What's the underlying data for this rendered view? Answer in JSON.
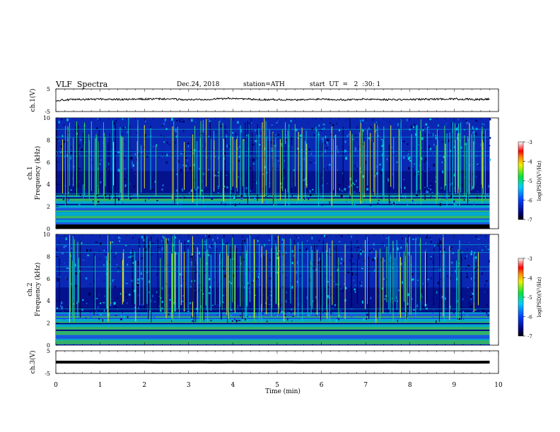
{
  "header": {
    "title": "VLF  Spectra",
    "date": "Dec.24, 2018",
    "station": "station=ATH",
    "start": "start  UT  =   2  :30: 1"
  },
  "chart_data": [
    {
      "id": "ch1-waveform",
      "type": "line",
      "ylabel": "ch.1(V)",
      "ylim": [
        -5,
        5
      ],
      "yticks": [
        "5",
        "-5"
      ],
      "xlim": [
        0,
        10
      ],
      "series": [
        {
          "x": [
            0,
            0.5,
            1,
            1.5,
            2,
            2.5,
            3,
            3.5,
            4,
            4.5,
            5,
            5.5,
            6,
            6.5,
            7,
            7.5,
            8,
            8.5,
            9,
            9.5,
            9.8
          ],
          "values": [
            0,
            0.3,
            0.5,
            0.3,
            0.5,
            0.6,
            0.2,
            0.5,
            0.9,
            0.3,
            0.3,
            0.1,
            0.6,
            0.2,
            0.5,
            0.3,
            0.3,
            0.5,
            0.6,
            0.3,
            0.5
          ]
        }
      ]
    },
    {
      "id": "ch1-spectrogram",
      "type": "heatmap",
      "ylabel": "ch.1\nFrequency (kHz)",
      "ylim": [
        0,
        10
      ],
      "yticks": [
        "0",
        "2",
        "4",
        "6",
        "8",
        "10"
      ],
      "xlim": [
        0,
        10
      ],
      "colorbar": {
        "label": "log(PSD)(V²/Hz)",
        "ticks": [
          "-3",
          "-4",
          "-5",
          "-6",
          "-7"
        ],
        "range": [
          -7,
          -3
        ]
      }
    },
    {
      "id": "ch2-spectrogram",
      "type": "heatmap",
      "ylabel": "ch.2\nFrequency (kHz)",
      "ylim": [
        0,
        10
      ],
      "yticks": [
        "0",
        "2",
        "4",
        "6",
        "8",
        "10"
      ],
      "xlim": [
        0,
        10
      ],
      "colorbar": {
        "label": "log(PSD)(V²/Hz)",
        "ticks": [
          "-3",
          "-4",
          "-5",
          "-6",
          "-7"
        ],
        "range": [
          -7,
          -3
        ]
      }
    },
    {
      "id": "ch3-waveform",
      "type": "line",
      "ylabel": "ch.3(V)",
      "ylim": [
        -5,
        5
      ],
      "yticks": [
        "5",
        "-5"
      ],
      "xlim": [
        0,
        10
      ],
      "xlabel": "Time  (min)",
      "xticks": [
        "0",
        "1",
        "2",
        "3",
        "4",
        "5",
        "6",
        "7",
        "8",
        "9",
        "10"
      ],
      "series": [
        {
          "x": [
            0,
            9.8
          ],
          "values": [
            0,
            0
          ]
        }
      ]
    }
  ],
  "colors": {
    "line": "#000000",
    "spectrum_dark": "#00006e",
    "spectrum_blue": "#0a32c8",
    "spectrum_cyan": "#00c8d2",
    "spectrum_green": "#3cd25a",
    "spectrum_yellow": "#e6e628"
  }
}
